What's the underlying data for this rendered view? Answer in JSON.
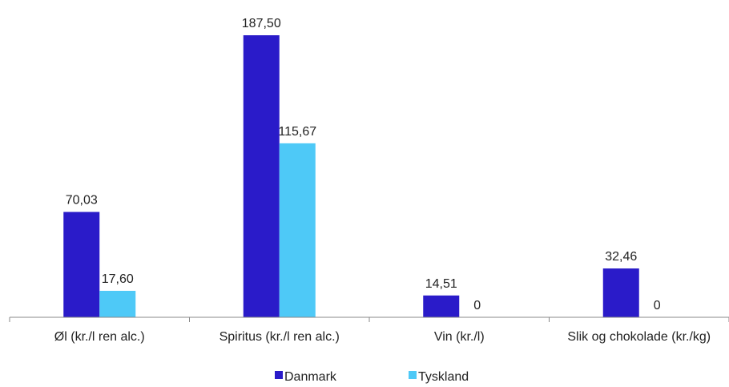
{
  "chart_data": {
    "type": "bar",
    "categories": [
      "Øl (kr./l ren alc.)",
      "Spiritus (kr./l ren alc.)",
      "Vin (kr./l)",
      "Slik og chokolade (kr./kg)"
    ],
    "series": [
      {
        "name": "Danmark",
        "color": "#2a1bc9",
        "values": [
          70.03,
          187.5,
          14.51,
          32.46
        ],
        "labels": [
          "70,03",
          "187,50",
          "14,51",
          "32,46"
        ]
      },
      {
        "name": "Tyskland",
        "color": "#4ec9f7",
        "values": [
          17.6,
          115.67,
          0,
          0
        ],
        "labels": [
          "17,60",
          "115,67",
          "0",
          "0"
        ]
      }
    ],
    "ylim": [
      0,
      187.5
    ],
    "grid": false,
    "legend": "bottom"
  }
}
